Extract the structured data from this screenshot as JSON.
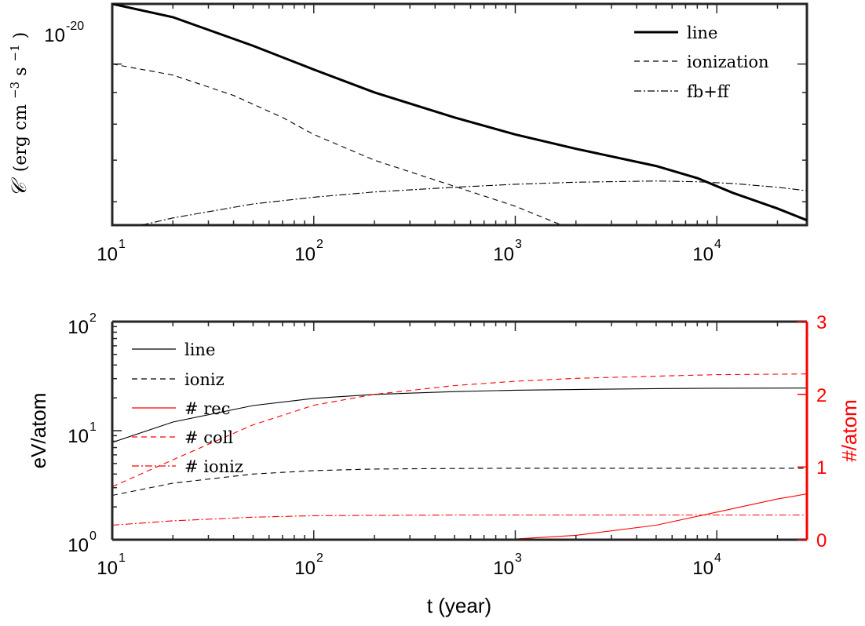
{
  "chart_data": [
    {
      "type": "line",
      "xscale": "log",
      "yscale": "log",
      "xlim": [
        10,
        28000
      ],
      "ylim": [
        5.5e-21,
        1.25e-20
      ],
      "ylabel_symbol": "𝒞",
      "ylabel_units": "(erg cm",
      "ylabel_exp1": "−3",
      "ylabel_mid": " s",
      "ylabel_exp2": "−1",
      "ylabel_close": ")",
      "x_ticks": [
        {
          "base": "10",
          "exp": "1"
        },
        {
          "base": "10",
          "exp": "2"
        },
        {
          "base": "10",
          "exp": "3"
        },
        {
          "base": "10",
          "exp": "4"
        }
      ],
      "y_ticks": [
        {
          "base": "10",
          "exp": "-20"
        }
      ],
      "legend_position": "top-right",
      "grid": false,
      "series": [
        {
          "name": "line",
          "style": "solid-thick",
          "x": [
            10,
            20,
            50,
            100,
            200,
            500,
            1000,
            2000,
            5000,
            8000,
            12000,
            20000,
            28000
          ],
          "y": [
            1.25e-20,
            1.19e-20,
            1.07e-20,
            9.8e-21,
            9e-21,
            8.2e-21,
            7.7e-21,
            7.3e-21,
            6.85e-21,
            6.55e-21,
            6.2e-21,
            5.85e-21,
            5.6e-21
          ]
        },
        {
          "name": "ionization",
          "style": "dashed",
          "x": [
            10,
            20,
            40,
            70,
            100,
            200,
            500,
            1000,
            1700
          ],
          "y": [
            1e-20,
            9.6e-21,
            8.9e-21,
            8.2e-21,
            7.7e-21,
            7e-21,
            6.35e-21,
            5.9e-21,
            5.5e-21
          ]
        },
        {
          "name": "fb+ff",
          "style": "dashdot",
          "x": [
            14,
            20,
            50,
            100,
            200,
            500,
            1000,
            2000,
            5000,
            8000,
            12000,
            20000,
            28000
          ],
          "y": [
            5.5e-21,
            5.65e-21,
            5.95e-21,
            6.1e-21,
            6.22e-21,
            6.33e-21,
            6.4e-21,
            6.45e-21,
            6.48e-21,
            6.46e-21,
            6.42e-21,
            6.33e-21,
            6.25e-21
          ]
        }
      ]
    },
    {
      "type": "line",
      "xscale": "log",
      "xlim": [
        10,
        28000
      ],
      "xlabel": "t (year)",
      "ylabel_left": "eV/atom",
      "ylabel_right": "#/atom",
      "ylim_left": [
        1,
        100
      ],
      "ylim_right": [
        0,
        3
      ],
      "x_ticks": [
        {
          "base": "10",
          "exp": "1"
        },
        {
          "base": "10",
          "exp": "2"
        },
        {
          "base": "10",
          "exp": "3"
        },
        {
          "base": "10",
          "exp": "4"
        }
      ],
      "y_ticks_left": [
        {
          "base": "10",
          "exp": "0"
        },
        {
          "base": "10",
          "exp": "1"
        },
        {
          "base": "10",
          "exp": "2"
        }
      ],
      "y_ticks_right": [
        "0",
        "1",
        "2",
        "3"
      ],
      "legend_position": "top-left",
      "grid": false,
      "colors": {
        "left_axis": "#000000",
        "right_axis": "#ff0000"
      },
      "series": [
        {
          "name": "line",
          "axis": "left",
          "color": "#000000",
          "style": "solid",
          "x": [
            10,
            20,
            50,
            100,
            200,
            500,
            1000,
            5000,
            10000,
            28000
          ],
          "y": [
            7.8,
            12.0,
            17.0,
            19.8,
            21.5,
            22.8,
            23.5,
            24.3,
            24.5,
            24.6
          ]
        },
        {
          "name": "ioniz",
          "axis": "left",
          "color": "#000000",
          "style": "dashed",
          "x": [
            10,
            20,
            50,
            100,
            200,
            500,
            1000,
            5000,
            10000,
            28000
          ],
          "y": [
            2.55,
            3.3,
            4.0,
            4.3,
            4.45,
            4.5,
            4.52,
            4.52,
            4.52,
            4.52
          ]
        },
        {
          "name": "# rec",
          "axis": "right",
          "color": "#ff0000",
          "style": "solid",
          "x": [
            10,
            100,
            500,
            1000,
            2000,
            5000,
            10000,
            20000,
            28000
          ],
          "y": [
            0.0,
            0.0,
            0.0,
            0.01,
            0.06,
            0.2,
            0.38,
            0.56,
            0.63
          ]
        },
        {
          "name": "# coll",
          "axis": "right",
          "color": "#ff0000",
          "style": "dashed",
          "x": [
            10,
            20,
            50,
            100,
            200,
            500,
            1000,
            2000,
            5000,
            10000,
            28000
          ],
          "y": [
            0.73,
            1.1,
            1.58,
            1.85,
            2.0,
            2.12,
            2.18,
            2.22,
            2.25,
            2.27,
            2.28
          ]
        },
        {
          "name": "# ioniz",
          "axis": "right",
          "color": "#ff0000",
          "style": "dashdot",
          "x": [
            10,
            20,
            50,
            100,
            200,
            500,
            1000,
            5000,
            10000,
            28000
          ],
          "y": [
            0.2,
            0.26,
            0.31,
            0.33,
            0.335,
            0.34,
            0.34,
            0.34,
            0.34,
            0.34
          ]
        }
      ]
    }
  ]
}
